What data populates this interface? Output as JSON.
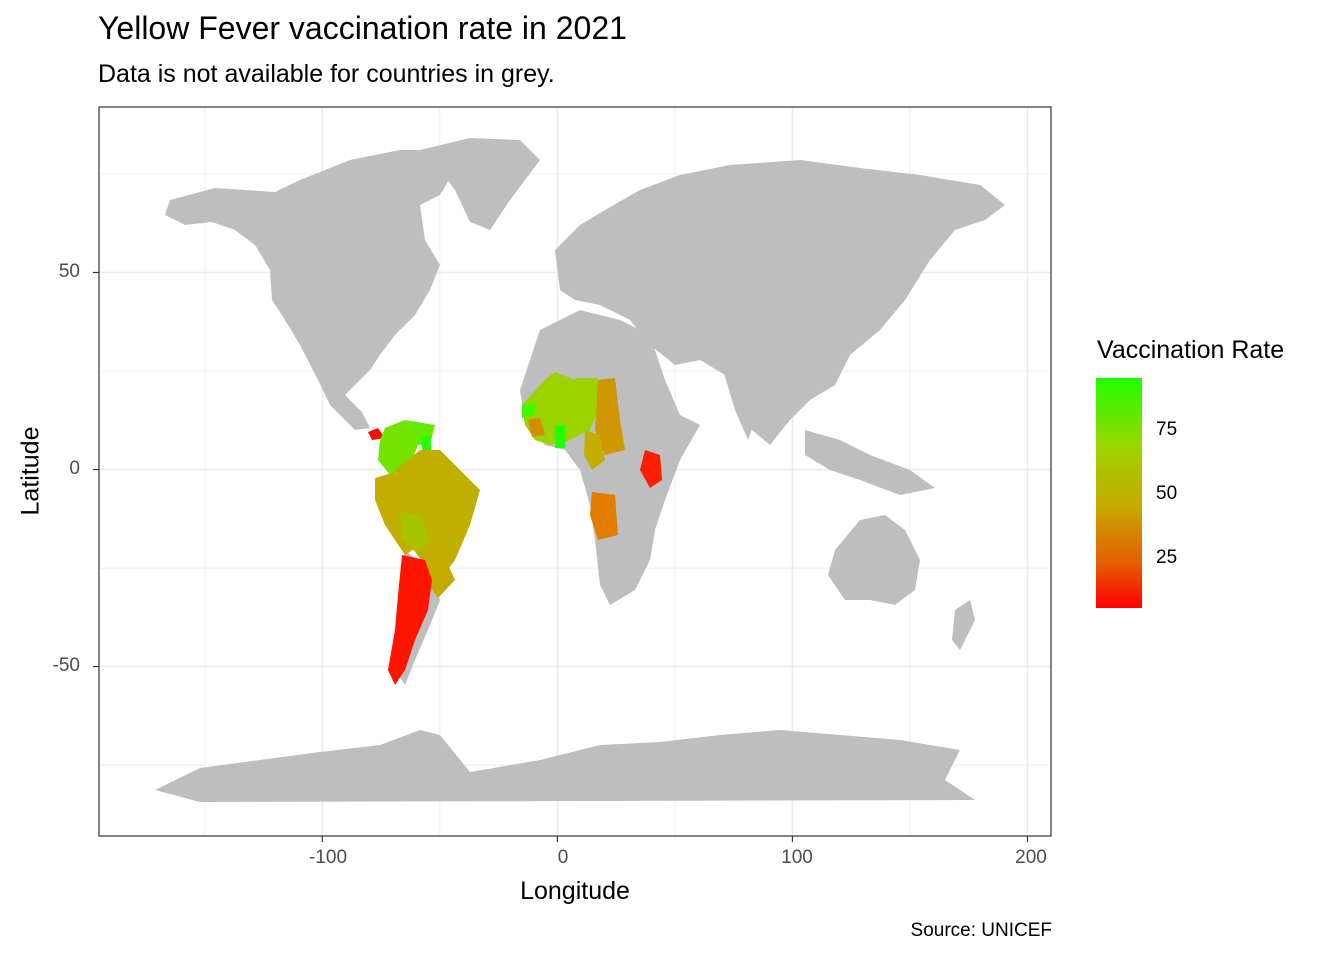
{
  "header": {
    "title": "Yellow Fever vaccination rate in 2021",
    "subtitle": "Data is not available for countries in grey."
  },
  "caption": "Source: UNICEF",
  "chart_data": {
    "type": "choropleth",
    "title": "Yellow Fever vaccination rate in 2021",
    "subtitle": "Data is not available for countries in grey.",
    "xlabel": "Longitude",
    "ylabel": "Latitude",
    "x_ticks": [
      "-100",
      "0",
      "100",
      "200"
    ],
    "y_ticks": [
      "50",
      "0",
      "-50"
    ],
    "xlim": [
      -195,
      210
    ],
    "ylim": [
      -93,
      92
    ],
    "grid": true,
    "legend": {
      "title": "Vaccination Rate",
      "position": "right",
      "ticks": [
        "75",
        "50",
        "25"
      ],
      "low_color": "#ff0000",
      "mid_color": "#c6aa00",
      "high_color": "#22ff00",
      "range": [
        5,
        95
      ]
    },
    "no_data_color": "#bebebe",
    "regions": [
      {
        "region": "Panama",
        "value": 5
      },
      {
        "region": "Colombia",
        "value": 85
      },
      {
        "region": "Venezuela",
        "value": 88
      },
      {
        "region": "Guyana",
        "value": 95
      },
      {
        "region": "Suriname",
        "value": 80
      },
      {
        "region": "Ecuador",
        "value": 60
      },
      {
        "region": "Peru",
        "value": 58
      },
      {
        "region": "Brazil",
        "value": 57
      },
      {
        "region": "Bolivia",
        "value": 65
      },
      {
        "region": "Paraguay",
        "value": 55
      },
      {
        "region": "Argentina",
        "value": 5
      },
      {
        "region": "West Africa",
        "value": 75
      },
      {
        "region": "Senegal",
        "value": 90
      },
      {
        "region": "Sierra Leone",
        "value": 40
      },
      {
        "region": "Ghana",
        "value": 95
      },
      {
        "region": "Niger",
        "value": 70
      },
      {
        "region": "Chad",
        "value": 45
      },
      {
        "region": "Central African Republic",
        "value": 42
      },
      {
        "region": "Cameroon",
        "value": 58
      },
      {
        "region": "Angola",
        "value": 35
      },
      {
        "region": "Kenya",
        "value": 5
      }
    ]
  }
}
